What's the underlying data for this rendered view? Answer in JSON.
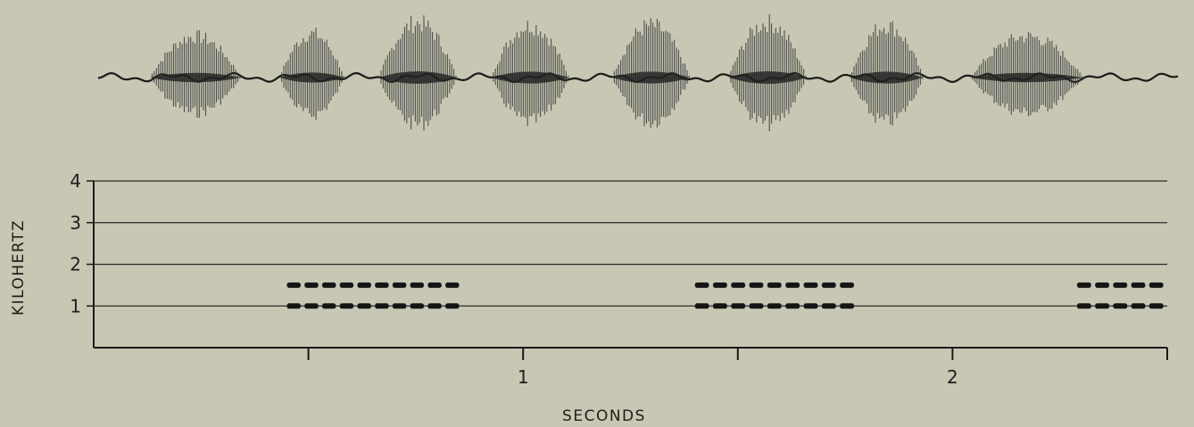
{
  "chart_data": [
    {
      "type": "waveform",
      "title": "",
      "xlabel": "",
      "ylabel": "",
      "bursts": [
        {
          "start": 0.12,
          "end": 0.33,
          "amplitude": 0.75
        },
        {
          "start": 0.42,
          "end": 0.57,
          "amplitude": 0.8
        },
        {
          "start": 0.65,
          "end": 0.83,
          "amplitude": 1.0
        },
        {
          "start": 0.91,
          "end": 1.09,
          "amplitude": 0.95
        },
        {
          "start": 1.19,
          "end": 1.37,
          "amplitude": 0.95
        },
        {
          "start": 1.46,
          "end": 1.64,
          "amplitude": 1.0
        },
        {
          "start": 1.74,
          "end": 1.91,
          "amplitude": 0.95
        },
        {
          "start": 2.02,
          "end": 2.28,
          "amplitude": 0.75
        }
      ],
      "xlim": [
        0,
        2.5
      ]
    },
    {
      "type": "spectrogram",
      "title": "",
      "xlabel": "SECONDS",
      "ylabel": "KILOHERTZ",
      "x_ticks": [
        0.5,
        1,
        1.5,
        2,
        2.5
      ],
      "x_tick_labels": [
        "",
        "1",
        "",
        "2",
        ""
      ],
      "y_ticks": [
        1,
        2,
        3,
        4
      ],
      "y_tick_labels": [
        "1",
        "2",
        "3",
        "4"
      ],
      "xlim": [
        0,
        2.5
      ],
      "ylim": [
        0,
        4
      ],
      "grid": true,
      "series": [
        {
          "segments": [
            {
              "start": 0.45,
              "end": 0.86,
              "frequency": 1.0,
              "count": 10
            },
            {
              "start": 1.4,
              "end": 1.78,
              "frequency": 1.0,
              "count": 9
            },
            {
              "start": 2.29,
              "end": 2.5,
              "frequency": 1.0,
              "count": 5
            }
          ]
        },
        {
          "segments": [
            {
              "start": 0.45,
              "end": 0.86,
              "frequency": 1.5,
              "count": 10
            },
            {
              "start": 1.4,
              "end": 1.78,
              "frequency": 1.5,
              "count": 9
            },
            {
              "start": 2.29,
              "end": 2.5,
              "frequency": 1.5,
              "count": 5
            }
          ]
        }
      ]
    }
  ]
}
